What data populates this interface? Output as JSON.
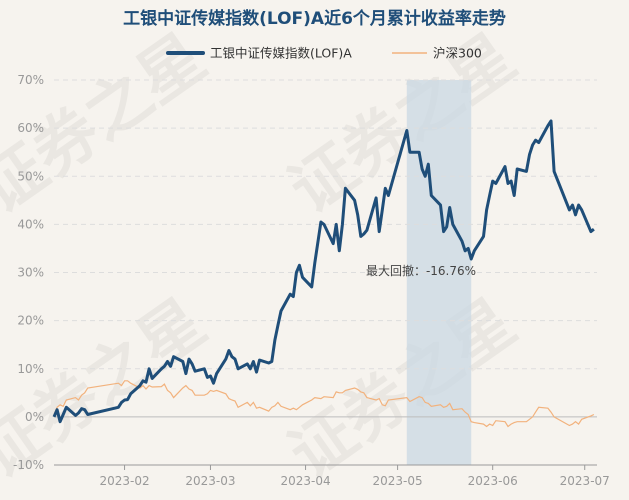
{
  "chart_data": {
    "type": "line",
    "title": "工银中证传媒指数(LOF)A近6个月累计收益率走势",
    "watermark": "证券之星",
    "colors": {
      "title": "#1f4e79",
      "fund": "#1f4e79",
      "index": "#f2b27d",
      "shade": "#c9d8e3"
    },
    "x_ticks": [
      "2023-02",
      "2023-03",
      "2023-04",
      "2023-05",
      "2023-06",
      "2023-07"
    ],
    "y_ticks": [
      "70%",
      "60%",
      "50%",
      "40%",
      "30%",
      "20%",
      "10%",
      "0%",
      "-10%"
    ],
    "ylim": [
      -10,
      70
    ],
    "grid": true,
    "legend_position": "top-center",
    "annotation": {
      "text": "最大回撤：-16.76%",
      "from": "2023-05-04",
      "to": "2023-05-25"
    },
    "series": [
      {
        "name": "工银中证传媒指数(LOF)A",
        "points": [
          [
            "2023-01-09",
            0
          ],
          [
            "2023-01-10",
            1.5
          ],
          [
            "2023-01-11",
            -1
          ],
          [
            "2023-01-12",
            0.5
          ],
          [
            "2023-01-13",
            2
          ],
          [
            "2023-01-16",
            0.3
          ],
          [
            "2023-01-17",
            0.8
          ],
          [
            "2023-01-18",
            1.7
          ],
          [
            "2023-01-19",
            1.5
          ],
          [
            "2023-01-20",
            0.5
          ],
          [
            "2023-01-30",
            2
          ],
          [
            "2023-01-31",
            3
          ],
          [
            "2023-02-01",
            3.5
          ],
          [
            "2023-02-02",
            3.6
          ],
          [
            "2023-02-03",
            4.8
          ],
          [
            "2023-02-06",
            6.5
          ],
          [
            "2023-02-07",
            7.5
          ],
          [
            "2023-02-08",
            7.2
          ],
          [
            "2023-02-09",
            10
          ],
          [
            "2023-02-10",
            8
          ],
          [
            "2023-02-13",
            10
          ],
          [
            "2023-02-14",
            10.5
          ],
          [
            "2023-02-15",
            11.5
          ],
          [
            "2023-02-16",
            10.5
          ],
          [
            "2023-02-17",
            12.5
          ],
          [
            "2023-02-20",
            11.5
          ],
          [
            "2023-02-21",
            9
          ],
          [
            "2023-02-22",
            12
          ],
          [
            "2023-02-23",
            11
          ],
          [
            "2023-02-24",
            9.5
          ],
          [
            "2023-02-27",
            10
          ],
          [
            "2023-02-28",
            8.2
          ],
          [
            "2023-03-01",
            8.5
          ],
          [
            "2023-03-02",
            7
          ],
          [
            "2023-03-03",
            9
          ],
          [
            "2023-03-06",
            12
          ],
          [
            "2023-03-07",
            13.8
          ],
          [
            "2023-03-08",
            12.5
          ],
          [
            "2023-03-09",
            12
          ],
          [
            "2023-03-10",
            10
          ],
          [
            "2023-03-13",
            11
          ],
          [
            "2023-03-14",
            10
          ],
          [
            "2023-03-15",
            11.5
          ],
          [
            "2023-03-16",
            9.3
          ],
          [
            "2023-03-17",
            11.8
          ],
          [
            "2023-03-20",
            11.2
          ],
          [
            "2023-03-21",
            11.5
          ],
          [
            "2023-03-22",
            16
          ],
          [
            "2023-03-23",
            19
          ],
          [
            "2023-03-24",
            22
          ],
          [
            "2023-03-27",
            25.5
          ],
          [
            "2023-03-28",
            25
          ],
          [
            "2023-03-29",
            30
          ],
          [
            "2023-03-30",
            31.5
          ],
          [
            "2023-03-31",
            29
          ],
          [
            "2023-04-03",
            27
          ],
          [
            "2023-04-04",
            32
          ],
          [
            "2023-04-06",
            40.5
          ],
          [
            "2023-04-07",
            40
          ],
          [
            "2023-04-10",
            36
          ],
          [
            "2023-04-11",
            40
          ],
          [
            "2023-04-12",
            34.5
          ],
          [
            "2023-04-13",
            40
          ],
          [
            "2023-04-14",
            47.5
          ],
          [
            "2023-04-17",
            45
          ],
          [
            "2023-04-18",
            42
          ],
          [
            "2023-04-19",
            37.5
          ],
          [
            "2023-04-20",
            38
          ],
          [
            "2023-04-21",
            38.8
          ],
          [
            "2023-04-24",
            45.5
          ],
          [
            "2023-04-25",
            38.5
          ],
          [
            "2023-04-26",
            43
          ],
          [
            "2023-04-27",
            47.5
          ],
          [
            "2023-04-28",
            46
          ],
          [
            "2023-05-04",
            59.5
          ],
          [
            "2023-05-05",
            55
          ],
          [
            "2023-05-08",
            55
          ],
          [
            "2023-05-09",
            51.5
          ],
          [
            "2023-05-10",
            50
          ],
          [
            "2023-05-11",
            52.5
          ],
          [
            "2023-05-12",
            46
          ],
          [
            "2023-05-15",
            44
          ],
          [
            "2023-05-16",
            38.5
          ],
          [
            "2023-05-17",
            39.5
          ],
          [
            "2023-05-18",
            43.5
          ],
          [
            "2023-05-19",
            40
          ],
          [
            "2023-05-22",
            36.5
          ],
          [
            "2023-05-23",
            34.5
          ],
          [
            "2023-05-24",
            35
          ],
          [
            "2023-05-25",
            32.8
          ],
          [
            "2023-05-26",
            34.5
          ],
          [
            "2023-05-29",
            37.5
          ],
          [
            "2023-05-30",
            43
          ],
          [
            "2023-05-31",
            46
          ],
          [
            "2023-06-01",
            49
          ],
          [
            "2023-06-02",
            48.5
          ],
          [
            "2023-06-05",
            52
          ],
          [
            "2023-06-06",
            48.5
          ],
          [
            "2023-06-07",
            49
          ],
          [
            "2023-06-08",
            46
          ],
          [
            "2023-06-09",
            51.5
          ],
          [
            "2023-06-12",
            51
          ],
          [
            "2023-06-13",
            54.5
          ],
          [
            "2023-06-14",
            56.5
          ],
          [
            "2023-06-15",
            57.5
          ],
          [
            "2023-06-16",
            57
          ],
          [
            "2023-06-19",
            60.5
          ],
          [
            "2023-06-20",
            61.5
          ],
          [
            "2023-06-21",
            51
          ],
          [
            "2023-06-26",
            43
          ],
          [
            "2023-06-27",
            44
          ],
          [
            "2023-06-28",
            42
          ],
          [
            "2023-06-29",
            44
          ],
          [
            "2023-06-30",
            43
          ],
          [
            "2023-07-03",
            38.5
          ],
          [
            "2023-07-04",
            39
          ]
        ]
      },
      {
        "name": "沪深300",
        "points": [
          [
            "2023-01-09",
            0.5
          ],
          [
            "2023-01-10",
            2
          ],
          [
            "2023-01-11",
            2.5
          ],
          [
            "2023-01-12",
            2.2
          ],
          [
            "2023-01-13",
            3.5
          ],
          [
            "2023-01-16",
            4
          ],
          [
            "2023-01-17",
            3.5
          ],
          [
            "2023-01-18",
            4.5
          ],
          [
            "2023-01-19",
            5
          ],
          [
            "2023-01-20",
            6
          ],
          [
            "2023-01-30",
            7
          ],
          [
            "2023-01-31",
            6.5
          ],
          [
            "2023-02-01",
            7.5
          ],
          [
            "2023-02-02",
            7.5
          ],
          [
            "2023-02-03",
            7
          ],
          [
            "2023-02-06",
            6
          ],
          [
            "2023-02-07",
            6.5
          ],
          [
            "2023-02-08",
            5.8
          ],
          [
            "2023-02-09",
            6.5
          ],
          [
            "2023-02-10",
            6.2
          ],
          [
            "2023-02-13",
            6.3
          ],
          [
            "2023-02-14",
            6.8
          ],
          [
            "2023-02-15",
            5.5
          ],
          [
            "2023-02-16",
            5
          ],
          [
            "2023-02-17",
            4
          ],
          [
            "2023-02-20",
            6
          ],
          [
            "2023-02-21",
            6.5
          ],
          [
            "2023-02-22",
            5.8
          ],
          [
            "2023-02-23",
            5.5
          ],
          [
            "2023-02-24",
            4.5
          ],
          [
            "2023-02-27",
            4.5
          ],
          [
            "2023-02-28",
            4.8
          ],
          [
            "2023-03-01",
            5.5
          ],
          [
            "2023-03-02",
            5.3
          ],
          [
            "2023-03-03",
            5.5
          ],
          [
            "2023-03-06",
            4.8
          ],
          [
            "2023-03-07",
            3.8
          ],
          [
            "2023-03-08",
            3.5
          ],
          [
            "2023-03-09",
            3.3
          ],
          [
            "2023-03-10",
            2
          ],
          [
            "2023-03-13",
            3
          ],
          [
            "2023-03-14",
            2.3
          ],
          [
            "2023-03-15",
            3
          ],
          [
            "2023-03-16",
            1.8
          ],
          [
            "2023-03-17",
            2
          ],
          [
            "2023-03-20",
            1.2
          ],
          [
            "2023-03-21",
            2
          ],
          [
            "2023-03-22",
            2.3
          ],
          [
            "2023-03-23",
            3
          ],
          [
            "2023-03-24",
            2.2
          ],
          [
            "2023-03-27",
            1.5
          ],
          [
            "2023-03-28",
            1.8
          ],
          [
            "2023-03-29",
            1.5
          ],
          [
            "2023-03-30",
            2
          ],
          [
            "2023-03-31",
            2.5
          ],
          [
            "2023-04-03",
            3.5
          ],
          [
            "2023-04-04",
            4
          ],
          [
            "2023-04-06",
            3.8
          ],
          [
            "2023-04-07",
            4.2
          ],
          [
            "2023-04-10",
            4
          ],
          [
            "2023-04-11",
            5.2
          ],
          [
            "2023-04-12",
            5
          ],
          [
            "2023-04-13",
            5
          ],
          [
            "2023-04-14",
            5.5
          ],
          [
            "2023-04-17",
            6
          ],
          [
            "2023-04-18",
            5.7
          ],
          [
            "2023-04-19",
            5.2
          ],
          [
            "2023-04-20",
            5
          ],
          [
            "2023-04-21",
            4
          ],
          [
            "2023-04-24",
            3.5
          ],
          [
            "2023-04-25",
            3.8
          ],
          [
            "2023-04-26",
            2.5
          ],
          [
            "2023-04-27",
            2.3
          ],
          [
            "2023-04-28",
            3.5
          ],
          [
            "2023-05-04",
            4
          ],
          [
            "2023-05-05",
            3.2
          ],
          [
            "2023-05-08",
            4.2
          ],
          [
            "2023-05-09",
            4
          ],
          [
            "2023-05-10",
            3
          ],
          [
            "2023-05-11",
            2.8
          ],
          [
            "2023-05-12",
            2.2
          ],
          [
            "2023-05-15",
            2.5
          ],
          [
            "2023-05-16",
            2
          ],
          [
            "2023-05-17",
            2.2
          ],
          [
            "2023-05-18",
            2.8
          ],
          [
            "2023-05-19",
            1.5
          ],
          [
            "2023-05-22",
            1.7
          ],
          [
            "2023-05-23",
            1
          ],
          [
            "2023-05-24",
            0.5
          ],
          [
            "2023-05-25",
            -1
          ],
          [
            "2023-05-26",
            -1.2
          ],
          [
            "2023-05-29",
            -1.5
          ],
          [
            "2023-05-30",
            -2
          ],
          [
            "2023-05-31",
            -1.5
          ],
          [
            "2023-06-01",
            -1.8
          ],
          [
            "2023-06-02",
            -0.8
          ],
          [
            "2023-06-05",
            -1
          ],
          [
            "2023-06-06",
            -2
          ],
          [
            "2023-06-07",
            -1.5
          ],
          [
            "2023-06-08",
            -1.2
          ],
          [
            "2023-06-09",
            -1
          ],
          [
            "2023-06-12",
            -1
          ],
          [
            "2023-06-13",
            -0.5
          ],
          [
            "2023-06-14",
            0
          ],
          [
            "2023-06-15",
            1
          ],
          [
            "2023-06-16",
            2
          ],
          [
            "2023-06-19",
            1.8
          ],
          [
            "2023-06-20",
            1
          ],
          [
            "2023-06-21",
            0
          ],
          [
            "2023-06-26",
            -1.8
          ],
          [
            "2023-06-27",
            -1.5
          ],
          [
            "2023-06-28",
            -1
          ],
          [
            "2023-06-29",
            -1.5
          ],
          [
            "2023-06-30",
            -0.5
          ],
          [
            "2023-07-03",
            0.2
          ],
          [
            "2023-07-04",
            0.5
          ]
        ]
      }
    ]
  }
}
